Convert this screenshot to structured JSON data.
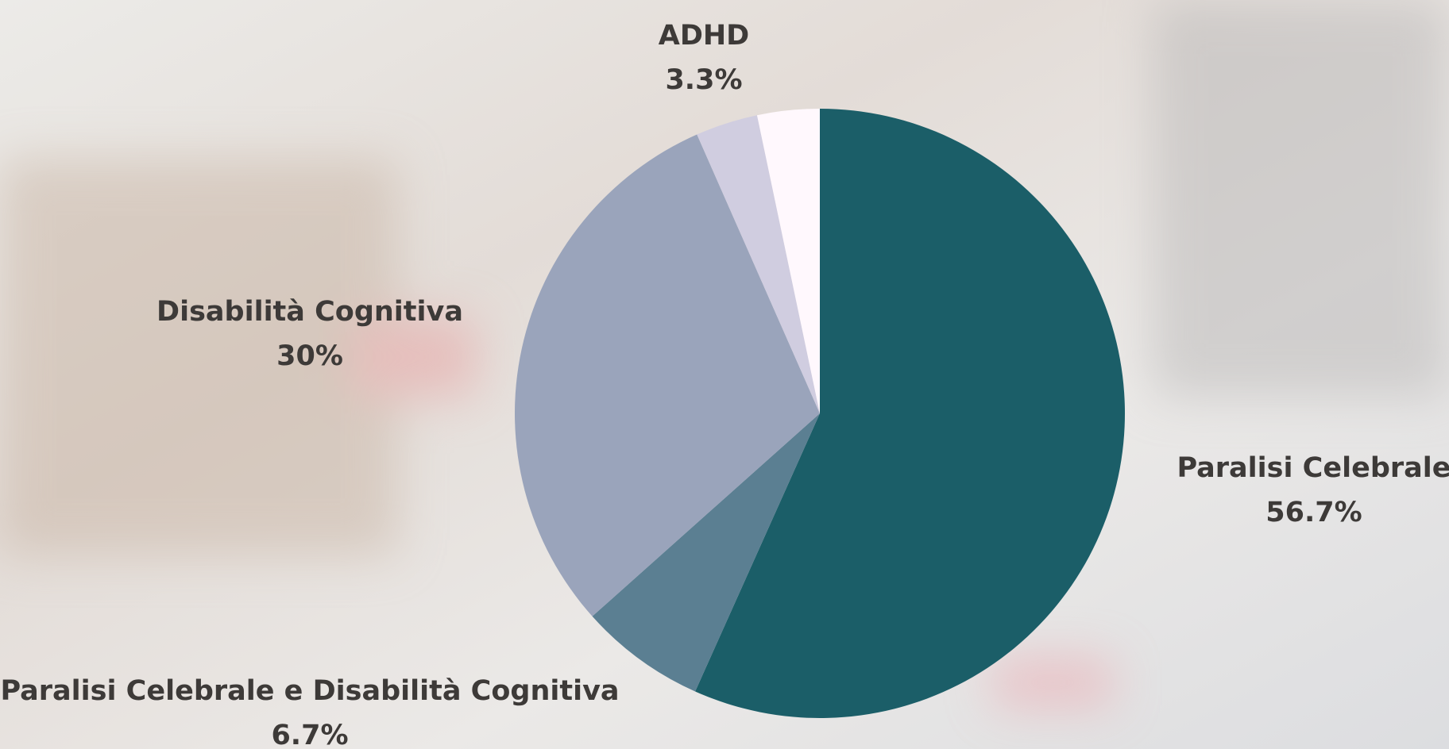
{
  "chart_data": {
    "type": "pie",
    "categories": [
      "Paralisi Celebrale",
      "Paralisi Celebrale e Disabilità Cognitiva",
      "Disabilità Cognitiva",
      null,
      "ADHD"
    ],
    "values": [
      56.7,
      6.7,
      30,
      3.3,
      3.3
    ],
    "value_labels": [
      "56.7%",
      "6.7%",
      "30%",
      null,
      "3.3%"
    ],
    "colors": [
      "#1b5e68",
      "#5b7f92",
      "#9aa4bb",
      "#d0cde0",
      "#fff8fd"
    ]
  }
}
